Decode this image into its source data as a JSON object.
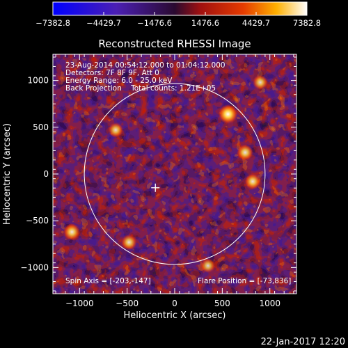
{
  "colorbar": {
    "colormap": "blue-purple-red-yellow-white",
    "colors": [
      "#0000ff",
      "#5a1fb0",
      "#b01010",
      "#e03000",
      "#ffb000",
      "#ffffff"
    ],
    "tick_labels": [
      "−7382.8",
      "−4429.7",
      "−1476.6",
      "1476.6",
      "4429.7",
      "7382.8"
    ]
  },
  "chart_data": {
    "type": "heatmap",
    "title": "Reconstructed RHESSI Image",
    "xlabel": "Heliocentric X (arcsec)",
    "ylabel": "Heliocentric Y (arcsec)",
    "xlim": [
      -1280,
      1280
    ],
    "ylim": [
      -1280,
      1280
    ],
    "x_ticks": [
      -1000,
      -500,
      0,
      500,
      1000
    ],
    "x_tick_labels": [
      "−1000",
      "−500",
      "0",
      "500",
      "1000"
    ],
    "y_ticks": [
      -1000,
      -500,
      0,
      500,
      1000
    ],
    "y_tick_labels": [
      "−1000",
      "−500",
      "0",
      "500",
      "1000"
    ],
    "value_range": [
      -7382.8,
      7382.8
    ],
    "solar_disk": {
      "center": [
        0,
        0
      ],
      "radius_arcsec": 950
    },
    "spin_axis_marker": [
      -203,
      -147
    ],
    "bright_sources": [
      {
        "x": 560,
        "y": 640,
        "level": 1.0
      },
      {
        "x": 740,
        "y": 230,
        "level": 0.7
      },
      {
        "x": 820,
        "y": -80,
        "level": 0.7
      },
      {
        "x": -1080,
        "y": -620,
        "level": 0.75
      },
      {
        "x": 900,
        "y": 980,
        "level": 0.6
      },
      {
        "x": -480,
        "y": -730,
        "level": 0.65
      },
      {
        "x": 350,
        "y": -980,
        "level": 0.55
      },
      {
        "x": -620,
        "y": 470,
        "level": 0.6
      }
    ],
    "annotations": [
      "23-Aug-2014 00:54:12.000 to 01:04:12.000",
      "Detectors: 7F 8F 9F, Att 0",
      "Energy Range: 6.0 - 25.0 keV",
      "Back Projection    Total counts: 1.21E+05"
    ],
    "footer_annotations": {
      "spin_axis": "Spin Axis = [-203,-147]",
      "flare_position": "Flare Position = [-73,836]"
    }
  },
  "timestamp": "22-Jan-2017 12:20"
}
